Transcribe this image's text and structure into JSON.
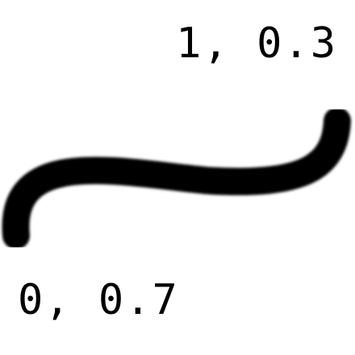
{
  "start_label": "0, 0.7",
  "end_label": "1, 0.3",
  "curve": {
    "start": [
      0,
      0.7
    ],
    "end": [
      1,
      0.3
    ],
    "color": "#000000"
  }
}
